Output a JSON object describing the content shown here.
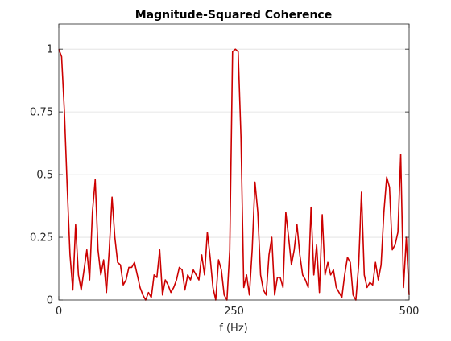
{
  "chart_data": {
    "type": "line",
    "title": "Magnitude-Squared Coherence",
    "x_label": "f (Hz)",
    "x": [
      0,
      4,
      8,
      12,
      16,
      20,
      24,
      28,
      32,
      36,
      40,
      44,
      48,
      52,
      56,
      60,
      64,
      68,
      72,
      76,
      80,
      84,
      88,
      92,
      96,
      100,
      104,
      108,
      112,
      116,
      120,
      124,
      128,
      132,
      136,
      140,
      144,
      148,
      152,
      156,
      160,
      164,
      168,
      172,
      176,
      180,
      184,
      188,
      192,
      196,
      200,
      204,
      208,
      212,
      216,
      220,
      224,
      228,
      232,
      236,
      240,
      244,
      248,
      252,
      256,
      260,
      264,
      268,
      272,
      276,
      280,
      284,
      288,
      292,
      296,
      300,
      304,
      308,
      312,
      316,
      320,
      324,
      328,
      332,
      336,
      340,
      344,
      348,
      352,
      356,
      360,
      364,
      368,
      372,
      376,
      380,
      384,
      388,
      392,
      396,
      400,
      404,
      408,
      412,
      416,
      420,
      424,
      428,
      432,
      436,
      440,
      444,
      448,
      452,
      456,
      460,
      464,
      468,
      472,
      476,
      480,
      484,
      488,
      492,
      496,
      500
    ],
    "values": [
      1.0,
      0.97,
      0.75,
      0.45,
      0.18,
      0.04,
      0.3,
      0.1,
      0.04,
      0.12,
      0.2,
      0.08,
      0.35,
      0.48,
      0.2,
      0.1,
      0.16,
      0.03,
      0.2,
      0.41,
      0.25,
      0.15,
      0.14,
      0.06,
      0.08,
      0.13,
      0.13,
      0.15,
      0.1,
      0.05,
      0.02,
      0.0,
      0.03,
      0.01,
      0.1,
      0.09,
      0.2,
      0.02,
      0.08,
      0.06,
      0.03,
      0.05,
      0.08,
      0.13,
      0.12,
      0.04,
      0.1,
      0.08,
      0.12,
      0.1,
      0.08,
      0.18,
      0.1,
      0.27,
      0.17,
      0.05,
      0.0,
      0.16,
      0.12,
      0.02,
      0.0,
      0.2,
      0.99,
      1.0,
      0.99,
      0.65,
      0.05,
      0.1,
      0.02,
      0.2,
      0.47,
      0.35,
      0.1,
      0.04,
      0.02,
      0.18,
      0.25,
      0.02,
      0.09,
      0.09,
      0.05,
      0.35,
      0.25,
      0.14,
      0.2,
      0.3,
      0.18,
      0.1,
      0.08,
      0.05,
      0.37,
      0.1,
      0.22,
      0.03,
      0.34,
      0.1,
      0.15,
      0.1,
      0.12,
      0.05,
      0.03,
      0.01,
      0.1,
      0.17,
      0.15,
      0.02,
      0.0,
      0.14,
      0.43,
      0.1,
      0.05,
      0.07,
      0.06,
      0.15,
      0.08,
      0.14,
      0.35,
      0.49,
      0.45,
      0.2,
      0.22,
      0.27,
      0.58,
      0.05,
      0.25,
      0.02
    ],
    "color": "#cc0000",
    "xlim": [
      0,
      500
    ],
    "xticks": [
      0,
      250,
      500
    ],
    "ylim": [
      0,
      1.1
    ],
    "yticks": [
      0,
      0.25,
      0.5,
      0.75,
      1
    ],
    "grid": true
  }
}
